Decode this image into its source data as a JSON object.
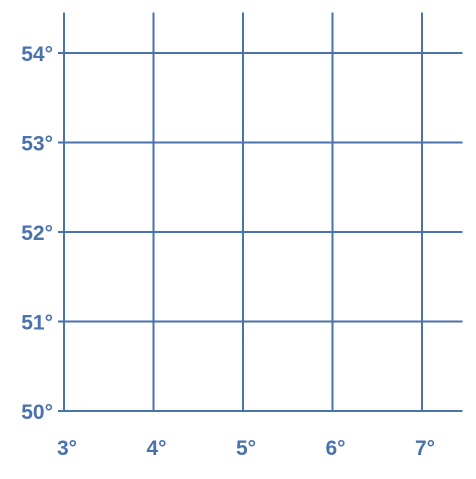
{
  "chart_data": {
    "type": "scatter",
    "title": "",
    "xlabel": "",
    "ylabel": "",
    "x_ticks": [
      "3°",
      "4°",
      "5°",
      "6°",
      "7°"
    ],
    "y_ticks": [
      "50°",
      "51°",
      "52°",
      "53°",
      "54°"
    ],
    "x_tick_values": [
      3,
      4,
      5,
      6,
      7
    ],
    "y_tick_values": [
      50,
      51,
      52,
      53,
      54
    ],
    "xlim": [
      3,
      7.45
    ],
    "ylim": [
      50,
      54.45
    ],
    "grid": true,
    "series": [],
    "colors": {
      "grid": "#4a72ad",
      "labels": "#4a72ad"
    }
  }
}
